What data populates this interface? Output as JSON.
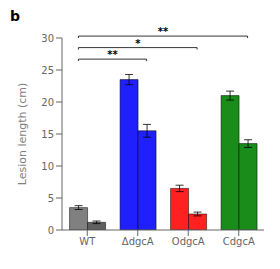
{
  "chart_data": {
    "type": "bar",
    "categories": [
      "WT",
      "ΔdgcA",
      "OdgcA",
      "CdgcA"
    ],
    "series": [
      {
        "values": [
          3.5,
          23.5,
          6.5,
          21.0
        ],
        "errors": [
          0.3,
          0.8,
          0.5,
          0.7
        ],
        "colors": [
          "#808080",
          "#2020ff",
          "#ff2020",
          "#1a8c1a"
        ]
      },
      {
        "values": [
          1.2,
          15.5,
          2.5,
          13.5
        ],
        "errors": [
          0.2,
          1.0,
          0.3,
          0.6
        ],
        "colors": [
          "#606060",
          "#2020ff",
          "#ff2020",
          "#1a8c1a"
        ]
      }
    ],
    "y_label": "Lesion length (cm)",
    "ylim": [
      0,
      30
    ],
    "yticks": [
      0,
      5,
      10,
      15,
      20,
      25,
      30
    ],
    "grid": false,
    "annotations": [
      {
        "text": "**",
        "from": "WT",
        "to": "ΔdgcA"
      },
      {
        "text": "*",
        "from": "WT",
        "to": "OdgcA"
      },
      {
        "text": "**",
        "from": "WT",
        "to": "CdgcA"
      },
      {
        "text": "b"
      }
    ]
  }
}
